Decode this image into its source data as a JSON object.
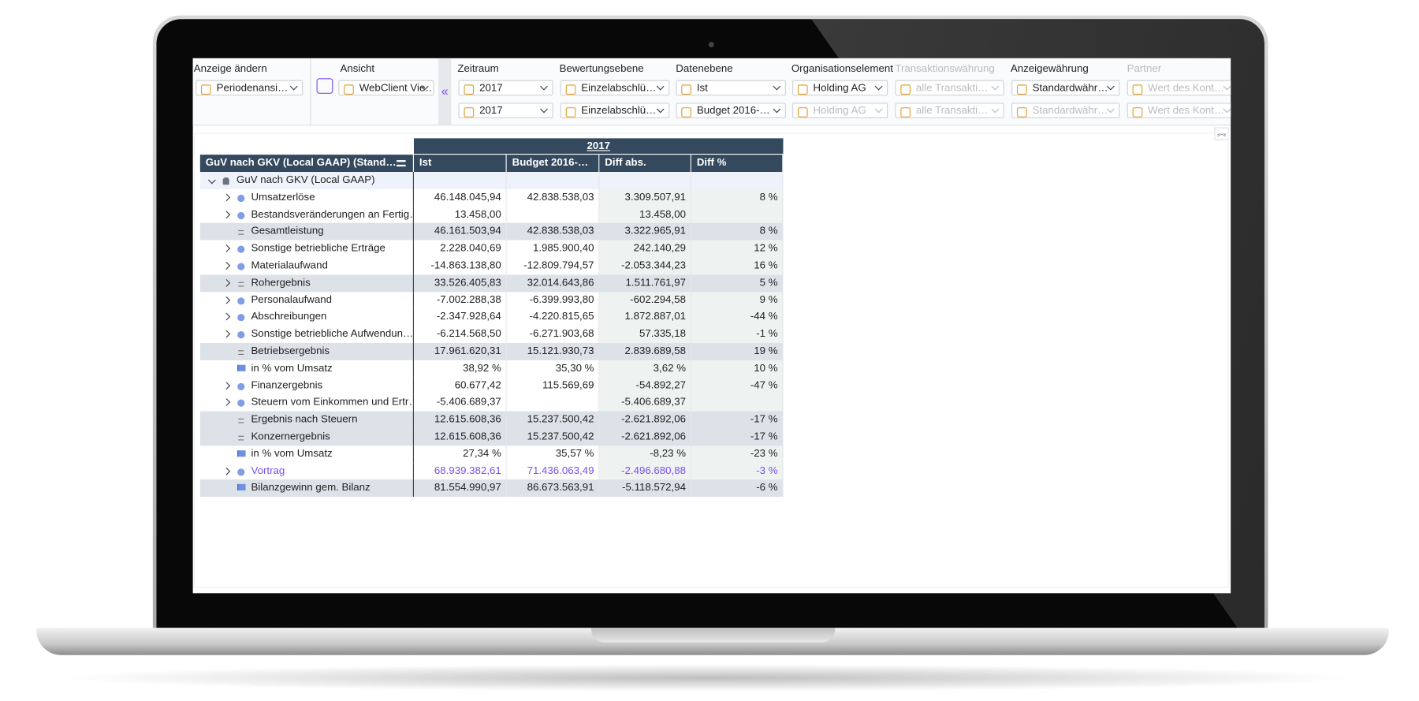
{
  "toolbar": {
    "groups": [
      {
        "label": "Anzeige ändern",
        "fields": [
          {
            "text": "Periodenansi…"
          }
        ]
      },
      {
        "label": "Ansicht",
        "fields": [
          {
            "text": "WebClient Vie…"
          }
        ]
      },
      {
        "label": "Zeitraum",
        "fields": [
          {
            "text": "2017"
          },
          {
            "text": "2017"
          }
        ]
      },
      {
        "label": "Bewertungsebene",
        "fields": [
          {
            "text": "Einzelabschlü…"
          },
          {
            "text": "Einzelabschlü…"
          }
        ]
      },
      {
        "label": "Datenebene",
        "fields": [
          {
            "text": "Ist"
          },
          {
            "text": "Budget 2016-…"
          }
        ]
      },
      {
        "label": "Organisationselement",
        "fields": [
          {
            "text": "Holding AG"
          },
          {
            "text": "Holding AG",
            "muted": true
          }
        ]
      },
      {
        "label": "Transaktionswährung",
        "muted": true,
        "fields": [
          {
            "text": "alle Transakti…",
            "muted": true
          },
          {
            "text": "alle Transakti…",
            "muted": true
          }
        ]
      },
      {
        "label": "Anzeigewährung",
        "fields": [
          {
            "text": "Standardwähr…"
          },
          {
            "text": "Standardwähr…",
            "muted": true
          }
        ]
      },
      {
        "label": "Partner",
        "muted": true,
        "fields": [
          {
            "text": "Wert des Kont…",
            "muted": true
          },
          {
            "text": "Wert des Kont…",
            "muted": true
          }
        ]
      }
    ]
  },
  "table": {
    "period": "2017",
    "columns": [
      "GuV nach GKV (Local GAAP) (Stand…",
      "Ist",
      "Budget 2016-…",
      "Diff abs.",
      "Diff %"
    ],
    "rows": [
      {
        "label": "GuV nach GKV (Local GAAP)",
        "icon": "root",
        "expand": "open",
        "cells": [
          null,
          null,
          null,
          null
        ]
      },
      {
        "label": "Umsatzerlöse",
        "icon": "dot",
        "expand": "closed",
        "cells": [
          "46.148.045,94",
          "42.838.538,03",
          "3.309.507,91",
          "8 %"
        ]
      },
      {
        "label": "Bestandsveränderungen an Fertig…",
        "icon": "dot",
        "expand": "closed",
        "cells": [
          "13.458,00",
          null,
          "13.458,00",
          null
        ]
      },
      {
        "label": "Gesamtleistung",
        "icon": "sum",
        "shaded": true,
        "cells": [
          "46.161.503,94",
          "42.838.538,03",
          "3.322.965,91",
          "8 %"
        ]
      },
      {
        "label": "Sonstige betriebliche Erträge",
        "icon": "dot",
        "expand": "closed",
        "cells": [
          "2.228.040,69",
          "1.985.900,40",
          "242.140,29",
          "12 %"
        ]
      },
      {
        "label": "Materialaufwand",
        "icon": "dot",
        "expand": "closed",
        "cells": [
          "-14.863.138,80",
          "-12.809.794,57",
          "-2.053.344,23",
          "16 %"
        ]
      },
      {
        "label": "Rohergebnis",
        "icon": "sum",
        "expand": "closed",
        "shaded": true,
        "cells": [
          "33.526.405,83",
          "32.014.643,86",
          "1.511.761,97",
          "5 %"
        ]
      },
      {
        "label": "Personalaufwand",
        "icon": "dot",
        "expand": "closed",
        "cells": [
          "-7.002.288,38",
          "-6.399.993,80",
          "-602.294,58",
          "9 %"
        ]
      },
      {
        "label": "Abschreibungen",
        "icon": "dot",
        "expand": "closed",
        "cells": [
          "-2.347.928,64",
          "-4.220.815,65",
          "1.872.887,01",
          "-44 %"
        ]
      },
      {
        "label": "Sonstige betriebliche Aufwendun…",
        "icon": "dot",
        "expand": "closed",
        "cells": [
          "-6.214.568,50",
          "-6.271.903,68",
          "57.335,18",
          "-1 %"
        ]
      },
      {
        "label": "Betriebsergebnis",
        "icon": "sum",
        "shaded": true,
        "cells": [
          "17.961.620,31",
          "15.121.930,73",
          "2.839.689,58",
          "19 %"
        ]
      },
      {
        "label": "in % vom Umsatz",
        "icon": "flag",
        "cells": [
          "38,92 %",
          "35,30 %",
          "3,62 %",
          "10 %"
        ]
      },
      {
        "label": "Finanzergebnis",
        "icon": "dot",
        "expand": "closed",
        "cells": [
          "60.677,42",
          "115.569,69",
          "-54.892,27",
          "-47 %"
        ]
      },
      {
        "label": "Steuern vom Einkommen und Ertr…",
        "icon": "dot",
        "expand": "closed",
        "cells": [
          "-5.406.689,37",
          null,
          "-5.406.689,37",
          null
        ]
      },
      {
        "label": "Ergebnis nach Steuern",
        "icon": "sum",
        "shaded": true,
        "cells": [
          "12.615.608,36",
          "15.237.500,42",
          "-2.621.892,06",
          "-17 %"
        ]
      },
      {
        "label": "Konzernergebnis",
        "icon": "sum",
        "shaded": true,
        "cells": [
          "12.615.608,36",
          "15.237.500,42",
          "-2.621.892,06",
          "-17 %"
        ]
      },
      {
        "label": "in % vom Umsatz",
        "icon": "flag",
        "cells": [
          "27,34 %",
          "35,57 %",
          "-8,23 %",
          "-23 %"
        ]
      },
      {
        "label": "Vortrag",
        "icon": "dot",
        "expand": "closed",
        "color": "#7b4ff0",
        "cells": [
          "68.939.382,61",
          "71.436.063,49",
          "-2.496.680,88",
          "-3 %"
        ]
      },
      {
        "label": "Bilanzgewinn gem. Bilanz",
        "icon": "flag",
        "shaded": true,
        "cells": [
          "81.554.990,97",
          "86.673.563,91",
          "-5.118.572,94",
          "-6 %"
        ]
      }
    ]
  }
}
